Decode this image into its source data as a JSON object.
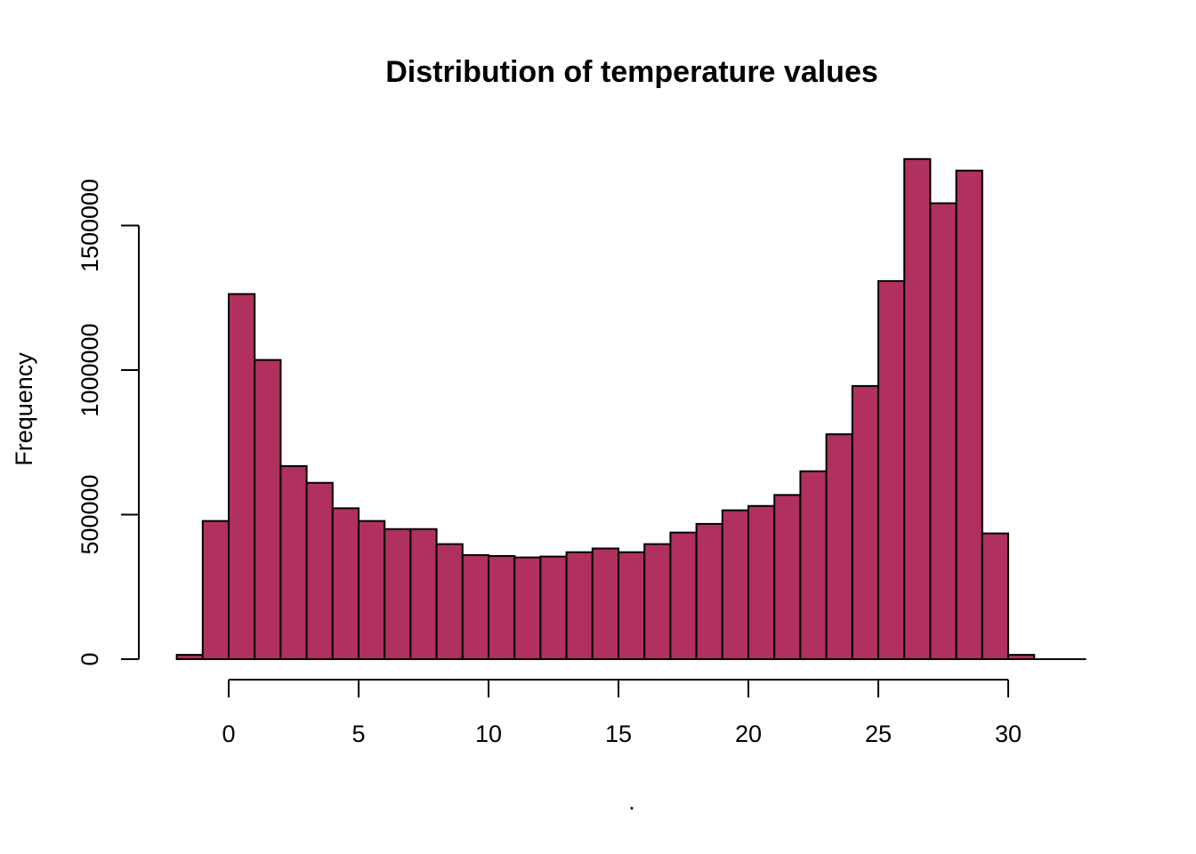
{
  "chart_data": {
    "type": "bar",
    "title": "Distribution of temperature values",
    "xlabel": ".",
    "ylabel": "Frequency",
    "bar_color": "#b03060",
    "xlim": [
      -2,
      33
    ],
    "ylim": [
      0,
      1750000
    ],
    "x_ticks": [
      0,
      5,
      10,
      15,
      20,
      25,
      30
    ],
    "x_tick_labels": [
      "0",
      "5",
      "10",
      "15",
      "20",
      "25",
      "30"
    ],
    "y_ticks": [
      0,
      500000,
      1000000,
      1500000
    ],
    "y_tick_labels": [
      "0",
      "500000",
      "1000000",
      "1500000"
    ],
    "bin_width": 1,
    "bins": [
      {
        "x0": -2,
        "x1": -1,
        "value": 15000
      },
      {
        "x0": -1,
        "x1": 0,
        "value": 478000
      },
      {
        "x0": 0,
        "x1": 1,
        "value": 1263000
      },
      {
        "x0": 1,
        "x1": 2,
        "value": 1035000
      },
      {
        "x0": 2,
        "x1": 3,
        "value": 668000
      },
      {
        "x0": 3,
        "x1": 4,
        "value": 610000
      },
      {
        "x0": 4,
        "x1": 5,
        "value": 522000
      },
      {
        "x0": 5,
        "x1": 6,
        "value": 478000
      },
      {
        "x0": 6,
        "x1": 7,
        "value": 450000
      },
      {
        "x0": 7,
        "x1": 8,
        "value": 450000
      },
      {
        "x0": 8,
        "x1": 9,
        "value": 398000
      },
      {
        "x0": 9,
        "x1": 10,
        "value": 360000
      },
      {
        "x0": 10,
        "x1": 11,
        "value": 357000
      },
      {
        "x0": 11,
        "x1": 12,
        "value": 352000
      },
      {
        "x0": 12,
        "x1": 13,
        "value": 355000
      },
      {
        "x0": 13,
        "x1": 14,
        "value": 370000
      },
      {
        "x0": 14,
        "x1": 15,
        "value": 383000
      },
      {
        "x0": 15,
        "x1": 16,
        "value": 370000
      },
      {
        "x0": 16,
        "x1": 17,
        "value": 398000
      },
      {
        "x0": 17,
        "x1": 18,
        "value": 438000
      },
      {
        "x0": 18,
        "x1": 19,
        "value": 468000
      },
      {
        "x0": 19,
        "x1": 20,
        "value": 515000
      },
      {
        "x0": 20,
        "x1": 21,
        "value": 530000
      },
      {
        "x0": 21,
        "x1": 22,
        "value": 568000
      },
      {
        "x0": 22,
        "x1": 23,
        "value": 650000
      },
      {
        "x0": 23,
        "x1": 24,
        "value": 778000
      },
      {
        "x0": 24,
        "x1": 25,
        "value": 945000
      },
      {
        "x0": 25,
        "x1": 26,
        "value": 1308000
      },
      {
        "x0": 26,
        "x1": 27,
        "value": 1730000
      },
      {
        "x0": 27,
        "x1": 28,
        "value": 1577000
      },
      {
        "x0": 28,
        "x1": 29,
        "value": 1690000
      },
      {
        "x0": 29,
        "x1": 30,
        "value": 435000
      },
      {
        "x0": 30,
        "x1": 31,
        "value": 15000
      },
      {
        "x0": 31,
        "x1": 32,
        "value": 0
      },
      {
        "x0": 32,
        "x1": 33,
        "value": 0
      }
    ]
  }
}
